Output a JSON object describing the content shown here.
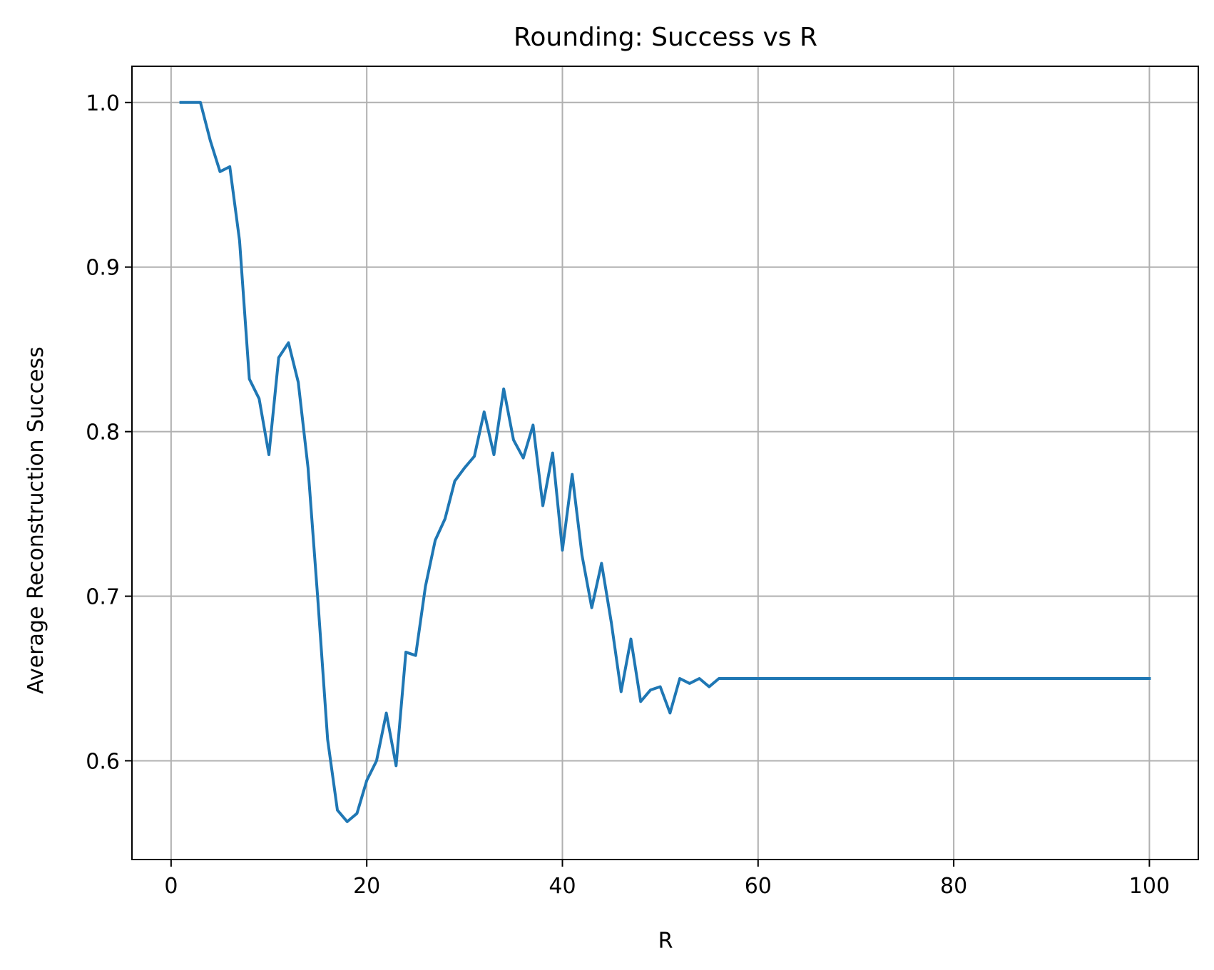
{
  "chart_data": {
    "type": "line",
    "title": "Rounding: Success vs R",
    "xlabel": "R",
    "ylabel": "Average Reconstruction Success",
    "xlim": [
      -4,
      105
    ],
    "ylim": [
      0.54,
      1.022
    ],
    "xticks": [
      0,
      20,
      40,
      60,
      80,
      100
    ],
    "yticks": [
      0.6,
      0.7,
      0.8,
      0.9,
      1.0
    ],
    "xtick_labels": [
      "0",
      "20",
      "40",
      "60",
      "80",
      "100"
    ],
    "ytick_labels": [
      "0.6",
      "0.7",
      "0.8",
      "0.9",
      "1.0"
    ],
    "grid": true,
    "colors": {
      "line": "#1f77b4",
      "grid": "#b0b0b0",
      "axes": "#000000"
    },
    "series": [
      {
        "x": [
          1,
          2,
          3,
          4,
          5,
          6,
          7,
          8,
          9,
          10,
          11,
          12,
          13,
          14,
          15,
          16,
          17,
          18,
          19,
          20,
          21,
          22,
          23,
          24,
          25,
          26,
          27,
          28,
          29,
          30,
          31,
          32,
          33,
          34,
          35,
          36,
          37,
          38,
          39,
          40,
          41,
          42,
          43,
          44,
          45,
          46,
          47,
          48,
          49,
          50,
          51,
          52,
          53,
          54,
          55,
          56,
          57,
          58,
          59,
          60,
          61,
          62,
          63,
          64,
          65,
          66,
          67,
          68,
          69,
          70,
          71,
          72,
          73,
          74,
          75,
          76,
          77,
          78,
          79,
          80,
          81,
          82,
          83,
          84,
          85,
          86,
          87,
          88,
          89,
          90,
          91,
          92,
          93,
          94,
          95,
          96,
          97,
          98,
          99,
          100
        ],
        "y": [
          1.0,
          1.0,
          1.0,
          0.977,
          0.958,
          0.961,
          0.916,
          0.832,
          0.82,
          0.786,
          0.845,
          0.854,
          0.83,
          0.778,
          0.698,
          0.613,
          0.57,
          0.563,
          0.568,
          0.588,
          0.6,
          0.629,
          0.597,
          0.666,
          0.664,
          0.706,
          0.734,
          0.747,
          0.77,
          0.778,
          0.785,
          0.812,
          0.786,
          0.826,
          0.795,
          0.784,
          0.804,
          0.755,
          0.787,
          0.728,
          0.774,
          0.725,
          0.693,
          0.72,
          0.684,
          0.642,
          0.674,
          0.636,
          0.643,
          0.645,
          0.629,
          0.65,
          0.647,
          0.65,
          0.645,
          0.65,
          0.65,
          0.65,
          0.65,
          0.65,
          0.65,
          0.65,
          0.65,
          0.65,
          0.65,
          0.65,
          0.65,
          0.65,
          0.65,
          0.65,
          0.65,
          0.65,
          0.65,
          0.65,
          0.65,
          0.65,
          0.65,
          0.65,
          0.65,
          0.65,
          0.65,
          0.65,
          0.65,
          0.65,
          0.65,
          0.65,
          0.65,
          0.65,
          0.65,
          0.65,
          0.65,
          0.65,
          0.65,
          0.65,
          0.65,
          0.65,
          0.65,
          0.65,
          0.65,
          0.65
        ]
      }
    ]
  }
}
